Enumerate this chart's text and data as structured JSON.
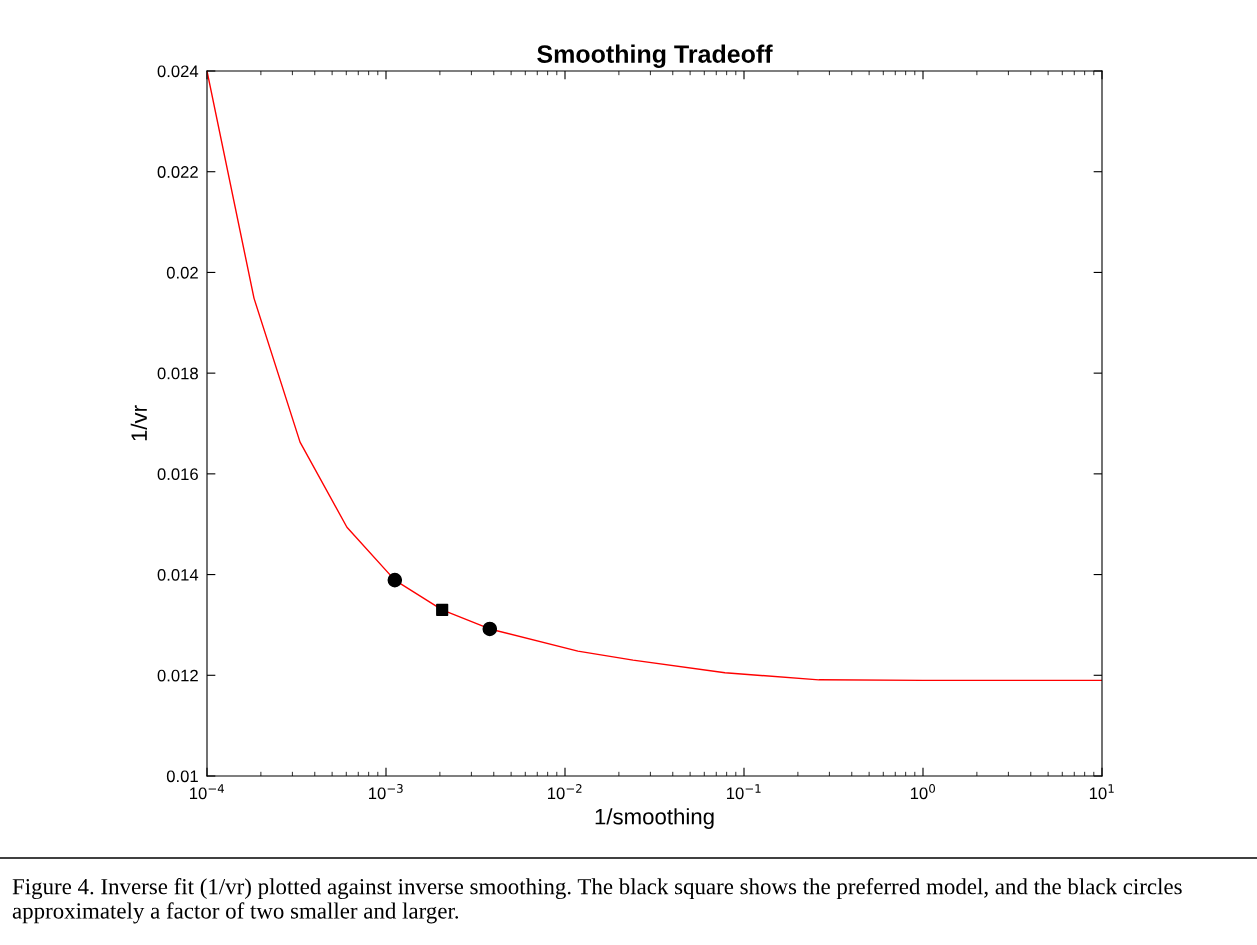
{
  "chart_data": {
    "type": "line",
    "title": "Smoothing Tradeoff",
    "xlabel": "1/smoothing",
    "ylabel": "1/vr",
    "log": "x",
    "grid": false,
    "legend": false,
    "series": [
      {
        "color": "#ff0000",
        "marker": "none",
        "x": [
          0.0001,
          0.000183,
          0.000331,
          0.000605,
          0.00112,
          0.00206,
          0.0038,
          0.0118,
          0.024,
          0.0783,
          0.262,
          1,
          10
        ],
        "values": [
          0.024,
          0.01949,
          0.01663,
          0.01494,
          0.01389,
          0.0133,
          0.01292,
          0.01248,
          0.0123,
          0.01205,
          0.01191,
          0.0119,
          0.0119
        ]
      },
      {
        "type": "scatter",
        "color": "#000000",
        "marker": "circle",
        "x": [
          0.00112,
          0.0038
        ],
        "values": [
          0.01389,
          0.01292
        ]
      },
      {
        "type": "scatter",
        "color": "#000000",
        "marker": "square",
        "x": [
          0.00206
        ],
        "values": [
          0.0133
        ]
      }
    ],
    "xlim": [
      0.0001,
      10
    ],
    "xticks": [
      {
        "value": 0.0001,
        "label": "10$^{−4}$"
      },
      {
        "value": 0.001,
        "label": "10$^{−3}$"
      },
      {
        "value": 0.01,
        "label": "10$^{−2}$"
      },
      {
        "value": 0.1,
        "label": "10$^{−1}$"
      },
      {
        "value": 1,
        "label": "10$^{0}$"
      },
      {
        "value": 10,
        "label": "10$^{1}$"
      }
    ],
    "ylim": [
      0.01,
      0.024
    ],
    "yticks": [
      0.01,
      0.012,
      0.014,
      0.016,
      0.018,
      0.02,
      0.022,
      0.024
    ],
    "annotations": [
      "Figure 4. Inverse fit (1/vr) plotted against inverse smoothing. The black square shows the preferred model, and the black circles approximately a factor of two smaller and larger."
    ]
  }
}
